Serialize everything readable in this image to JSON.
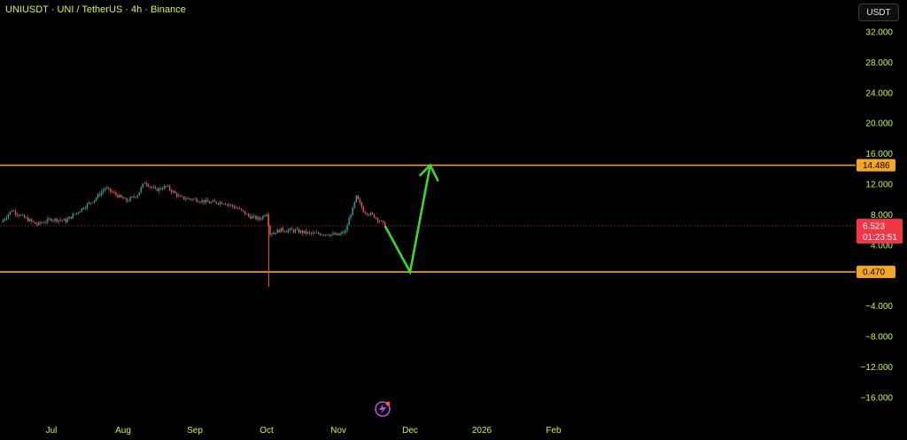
{
  "header": {
    "title": "UNIUSDT · UNI / TetherUS · 4h · Binance",
    "currency_label": "USDT"
  },
  "colors": {
    "background": "#000000",
    "axis_text": "#c8f73a",
    "level_line": "#f5a623",
    "arrow": "#3cd62e",
    "candle_up": "#26a69a",
    "candle_down": "#ef5350",
    "last_price_bg": "#f23645",
    "event_icon": "#b452e8"
  },
  "icons": {
    "event": "lightning-event-icon"
  },
  "chart_data": {
    "type": "candlestick",
    "y_axis": {
      "min": -18,
      "max": 34,
      "ticks": [
        32,
        28,
        24,
        20,
        16,
        12,
        8,
        4,
        -4,
        -8,
        -12,
        -16
      ],
      "tick_labels": [
        "32.000",
        "28.000",
        "24.000",
        "20.000",
        "16.000",
        "12.000",
        "8.000",
        "4.000",
        "−4.000",
        "−8.000",
        "−12.000",
        "−16.000"
      ]
    },
    "x_axis": {
      "months": [
        "Jul",
        "Aug",
        "Sep",
        "Oct",
        "Nov",
        "Dec",
        "2026",
        "Feb"
      ],
      "month_index": [
        0,
        1,
        2,
        3,
        4,
        5,
        6,
        7
      ]
    },
    "levels": [
      {
        "value": 14.486,
        "label": "14.486"
      },
      {
        "value": 0.47,
        "label": "0.470"
      }
    ],
    "last_price": {
      "value": 6.523,
      "label": "6.523",
      "countdown": "01:23:51"
    },
    "price_path": [
      [
        -0.7,
        7.0
      ],
      [
        -0.55,
        8.6
      ],
      [
        -0.4,
        7.7
      ],
      [
        -0.2,
        6.7
      ],
      [
        0.0,
        7.4
      ],
      [
        0.2,
        7.2
      ],
      [
        0.4,
        8.6
      ],
      [
        0.6,
        10.0
      ],
      [
        0.75,
        11.5
      ],
      [
        0.9,
        10.6
      ],
      [
        1.05,
        9.8
      ],
      [
        1.2,
        10.6
      ],
      [
        1.3,
        12.3
      ],
      [
        1.45,
        11.2
      ],
      [
        1.6,
        11.7
      ],
      [
        1.8,
        10.2
      ],
      [
        2.0,
        10.0
      ],
      [
        2.2,
        9.6
      ],
      [
        2.4,
        9.6
      ],
      [
        2.6,
        8.8
      ],
      [
        2.75,
        7.8
      ],
      [
        2.9,
        7.4
      ],
      [
        3.0,
        8.2
      ],
      [
        3.05,
        5.5
      ],
      [
        3.2,
        6.0
      ],
      [
        3.4,
        5.9
      ],
      [
        3.6,
        5.5
      ],
      [
        3.8,
        5.5
      ],
      [
        4.0,
        5.3
      ],
      [
        4.1,
        5.8
      ],
      [
        4.15,
        7.5
      ],
      [
        4.2,
        8.7
      ],
      [
        4.25,
        10.3
      ],
      [
        4.35,
        8.5
      ],
      [
        4.5,
        7.8
      ],
      [
        4.6,
        7.0
      ],
      [
        4.65,
        6.5
      ]
    ],
    "wick_spikes": [
      {
        "x": 3.03,
        "low": -1.5,
        "high": 8.0
      }
    ],
    "projection_arrow": [
      [
        4.65,
        6.5
      ],
      [
        5.0,
        0.47
      ],
      [
        5.28,
        14.486
      ]
    ]
  }
}
